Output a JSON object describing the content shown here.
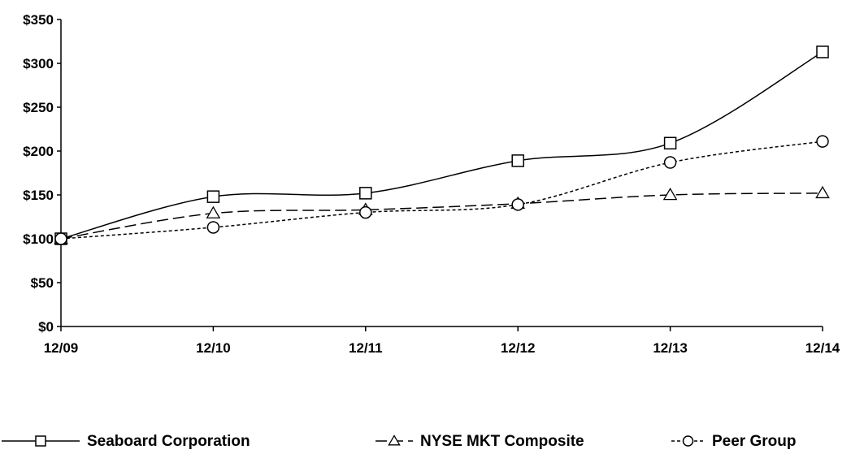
{
  "chart_data": {
    "type": "line",
    "categories": [
      "12/09",
      "12/10",
      "12/11",
      "12/12",
      "12/13",
      "12/14"
    ],
    "ylim": [
      0,
      350
    ],
    "yticks": [
      0,
      50,
      100,
      150,
      200,
      250,
      300,
      350
    ],
    "ytick_labels": [
      "$0",
      "$50",
      "$100",
      "$150",
      "$200",
      "$250",
      "$300",
      "$350"
    ],
    "grid": false,
    "legend_position": "bottom",
    "series": [
      {
        "name": "Seaboard Corporation",
        "marker": "square",
        "dash": "solid",
        "values": [
          100,
          148,
          152,
          189,
          209,
          313
        ]
      },
      {
        "name": "NYSE MKT Composite",
        "marker": "triangle",
        "dash": "dashed",
        "values": [
          100,
          129,
          133,
          140,
          150,
          152
        ]
      },
      {
        "name": "Peer Group",
        "marker": "circle",
        "dash": "dotted",
        "values": [
          100,
          113,
          130,
          139,
          187,
          211
        ]
      }
    ]
  }
}
